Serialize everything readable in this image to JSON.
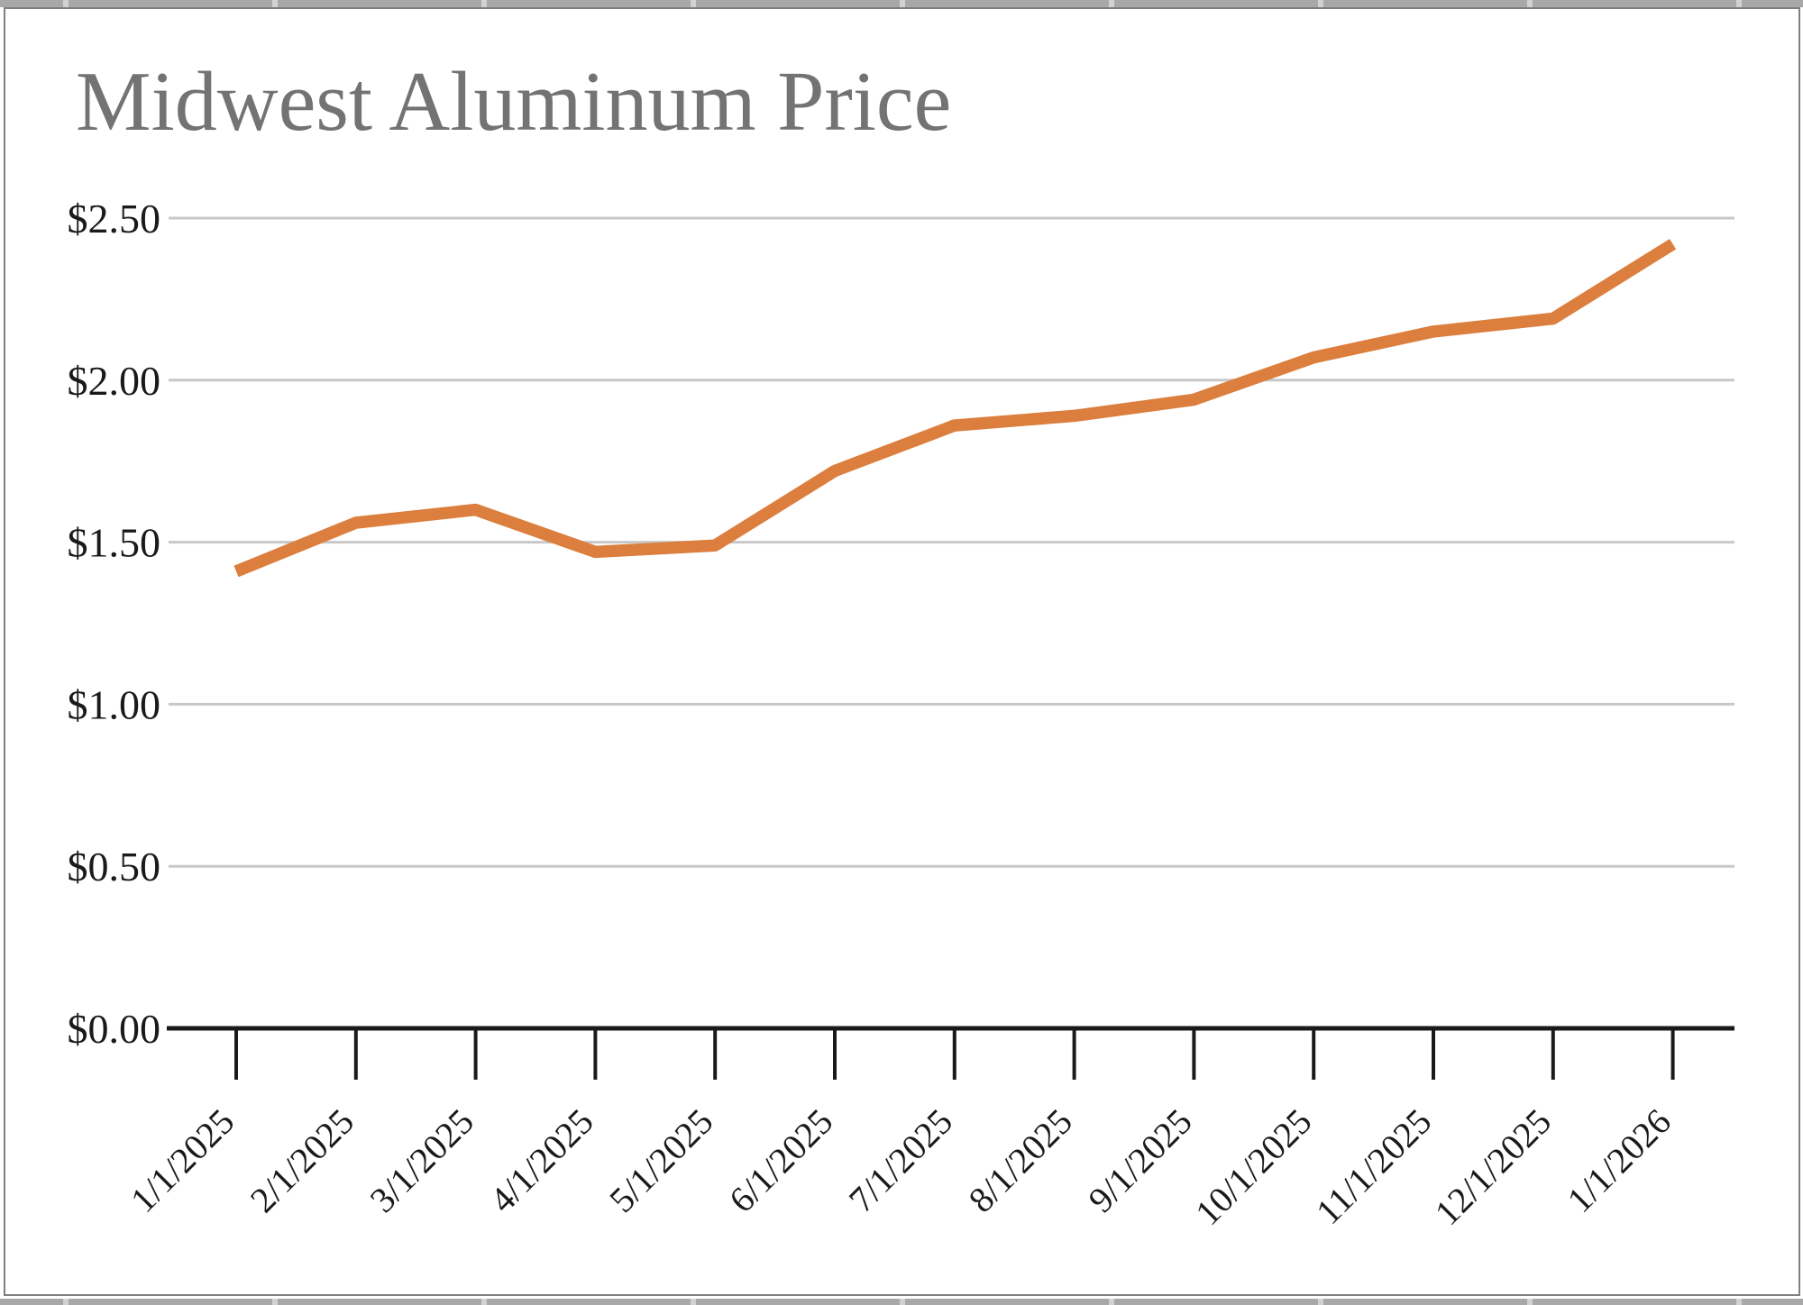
{
  "chart_data": {
    "type": "line",
    "title": "Midwest Aluminum Price",
    "categories": [
      "1/1/2025",
      "2/1/2025",
      "3/1/2025",
      "4/1/2025",
      "5/1/2025",
      "6/1/2025",
      "7/1/2025",
      "8/1/2025",
      "9/1/2025",
      "10/1/2025",
      "11/1/2025",
      "12/1/2025",
      "1/1/2026"
    ],
    "series": [
      {
        "name": "Midwest Aluminum Price",
        "values": [
          1.41,
          1.56,
          1.6,
          1.47,
          1.49,
          1.72,
          1.86,
          1.89,
          1.94,
          2.07,
          2.15,
          2.19,
          2.42
        ]
      }
    ],
    "xlabel": "",
    "ylabel": "",
    "ylim": [
      0,
      2.5
    ],
    "ytick_step": 0.5,
    "ytick_labels": [
      "$0.00",
      "$0.50",
      "$1.00",
      "$1.50",
      "$2.00",
      "$2.50"
    ],
    "grid": true,
    "legend": "none",
    "x_labels_rotation_deg": 45,
    "colors": {
      "line": "#DC7E3D",
      "gridline": "#c8c8c8",
      "axis": "#1a1a1a",
      "tick_label": "#1a1a1a",
      "title": "#737373",
      "frame_border": "#7f7f7f",
      "grid_strip": "#a8a8a8"
    }
  }
}
